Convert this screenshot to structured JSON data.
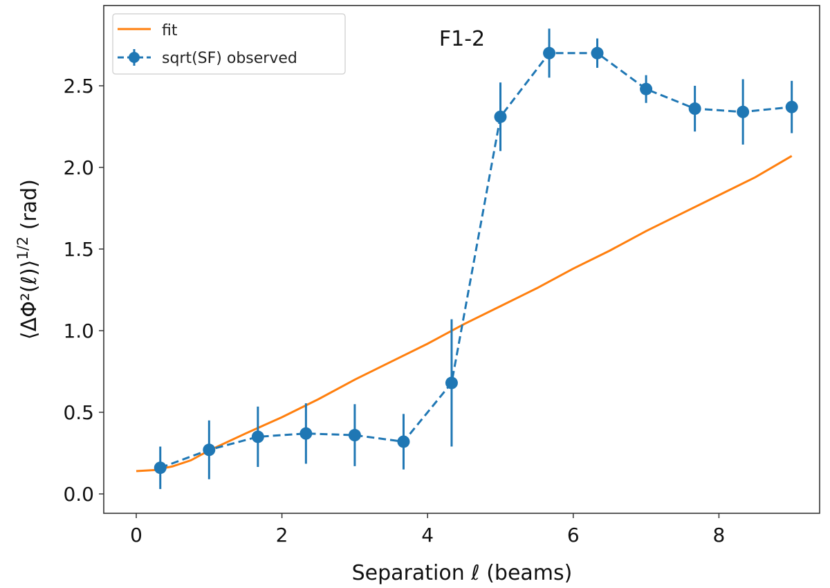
{
  "chart_data": {
    "type": "line",
    "title": "F1-2",
    "xlabel": "Separation ℓ (beams)",
    "ylabel": {
      "main": "⟨ΔΦ²(ℓ)⟩",
      "sup": "1/2",
      "unit": " (rad)"
    },
    "xlim": [
      -0.45,
      9.4
    ],
    "ylim": [
      -0.12,
      3.0
    ],
    "xticks": [
      0,
      2,
      4,
      6,
      8
    ],
    "xtick_labels": [
      "0",
      "2",
      "4",
      "6",
      "8"
    ],
    "yticks": [
      0.0,
      0.5,
      1.0,
      1.5,
      2.0,
      2.5
    ],
    "ytick_labels": [
      "0.0",
      "0.5",
      "1.0",
      "1.5",
      "2.0",
      "2.5"
    ],
    "grid": false,
    "legend": {
      "placement": "top-left",
      "entries": [
        "fit",
        "sqrt(SF) observed"
      ]
    },
    "colors": {
      "fit": "#ff7f0e",
      "observed": "#1f77b4"
    },
    "series": [
      {
        "name": "fit",
        "style": "solid",
        "x": [
          0,
          0.25,
          0.5,
          0.75,
          1,
          1.5,
          2,
          2.5,
          3,
          3.5,
          4,
          4.5,
          5,
          5.5,
          6,
          6.5,
          7,
          7.5,
          8,
          8.5,
          9
        ],
        "y": [
          0.14,
          0.146,
          0.169,
          0.206,
          0.266,
          0.37,
          0.47,
          0.58,
          0.7,
          0.81,
          0.92,
          1.04,
          1.15,
          1.26,
          1.38,
          1.49,
          1.61,
          1.72,
          1.83,
          1.94,
          2.07
        ]
      },
      {
        "name": "sqrt(SF) observed",
        "style": "dashed-errorbar",
        "x": [
          0.33,
          1.0,
          1.67,
          2.33,
          3.0,
          3.67,
          4.33,
          5.0,
          5.67,
          6.33,
          7.0,
          7.67,
          8.33,
          9.0
        ],
        "y": [
          0.16,
          0.27,
          0.35,
          0.37,
          0.36,
          0.32,
          0.68,
          2.31,
          2.7,
          2.7,
          2.48,
          2.36,
          2.34,
          2.37
        ],
        "yerr": [
          0.13,
          0.18,
          0.185,
          0.185,
          0.19,
          0.17,
          0.39,
          0.21,
          0.15,
          0.09,
          0.085,
          0.14,
          0.2,
          0.16
        ]
      }
    ]
  }
}
